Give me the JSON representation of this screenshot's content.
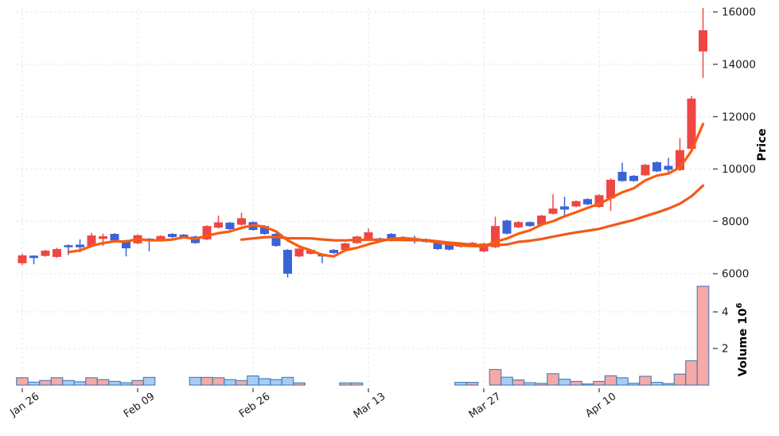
{
  "chart_data": {
    "type": "candlestick",
    "title": "",
    "panels": [
      "price",
      "volume"
    ],
    "ma_windows": [
      5,
      20
    ],
    "up_color_convention": "red = close above open, blue = close below open",
    "x_ticks": {
      "labels": [
        "Jan 26",
        "Feb 09",
        "Feb 26",
        "Mar 13",
        "Mar 27",
        "Apr 10"
      ],
      "indices": [
        0,
        10,
        20,
        30,
        40,
        50
      ]
    },
    "price_axis": {
      "label": "Price",
      "ticks": [
        6000,
        8000,
        10000,
        12000,
        14000,
        16000
      ],
      "range": [
        5700,
        16300
      ],
      "side": "right"
    },
    "volume_axis": {
      "label": "Volume",
      "unit_base": "10",
      "unit_exponent": "6",
      "ticks": [
        2,
        4
      ],
      "range": [
        0,
        5.7
      ],
      "side": "right"
    },
    "volume_scale": "10^6",
    "grid": {
      "on": true,
      "style": "dashed"
    },
    "colors": {
      "up_candle": "#ee4743",
      "down_candle": "#3b63d8",
      "ma5_line": "#fa5c10",
      "ma20_line": "#ef5a1c",
      "volume_up_fill": "#f8a8a5",
      "volume_down_fill": "#a9ccf3",
      "volume_edge": "#3d7dbd",
      "gridline": "#e4e7ec",
      "tick_text": "#1a1a1a"
    },
    "candles_format": [
      "open",
      "high",
      "low",
      "close",
      "volume_millions"
    ],
    "candles": [
      [
        6400,
        6760,
        6330,
        6700,
        0.4
      ],
      [
        6690,
        6700,
        6360,
        6600,
        0.16
      ],
      [
        6680,
        6910,
        6650,
        6880,
        0.25
      ],
      [
        6640,
        6990,
        6610,
        6940,
        0.4
      ],
      [
        7090,
        7120,
        6710,
        7010,
        0.25
      ],
      [
        7110,
        7310,
        6810,
        7010,
        0.18
      ],
      [
        7060,
        7560,
        7030,
        7460,
        0.4
      ],
      [
        7330,
        7530,
        7060,
        7430,
        0.3
      ],
      [
        7520,
        7550,
        7240,
        7270,
        0.2
      ],
      [
        7270,
        7300,
        6660,
        6970,
        0.13
      ],
      [
        7160,
        7500,
        7130,
        7470,
        0.25
      ],
      [
        7340,
        7370,
        6860,
        7240,
        0.42
      ],
      [
        7300,
        7470,
        7270,
        7440,
        0.02
      ],
      [
        7520,
        7550,
        7370,
        7400,
        0.02
      ],
      [
        7490,
        7520,
        7370,
        7400,
        0.02
      ],
      [
        7420,
        7450,
        7140,
        7170,
        0.42
      ],
      [
        7310,
        7850,
        7280,
        7820,
        0.42
      ],
      [
        7760,
        8220,
        7730,
        7960,
        0.4
      ],
      [
        7950,
        7980,
        7670,
        7700,
        0.3
      ],
      [
        7870,
        8330,
        7840,
        8120,
        0.25
      ],
      [
        7970,
        8000,
        7640,
        7670,
        0.5
      ],
      [
        7820,
        7850,
        7490,
        7520,
        0.35
      ],
      [
        7520,
        7550,
        7030,
        7060,
        0.3
      ],
      [
        6910,
        6940,
        5850,
        6000,
        0.42
      ],
      [
        6660,
        6990,
        6630,
        6960,
        0.12
      ],
      [
        6760,
        6940,
        6730,
        6910,
        0.02
      ],
      [
        6760,
        6790,
        6400,
        6660,
        0.02
      ],
      [
        6910,
        6940,
        6760,
        6790,
        0.02
      ],
      [
        6910,
        7190,
        6880,
        7160,
        0.12
      ],
      [
        7170,
        7450,
        7140,
        7420,
        0.12
      ],
      [
        7300,
        7730,
        7270,
        7580,
        0.02
      ],
      [
        7350,
        7380,
        7210,
        7240,
        0.02
      ],
      [
        7520,
        7550,
        7240,
        7270,
        0.02
      ],
      [
        7400,
        7430,
        7270,
        7300,
        0.02
      ],
      [
        7330,
        7450,
        7150,
        7270,
        0.02
      ],
      [
        7320,
        7350,
        7180,
        7210,
        0.02
      ],
      [
        7210,
        7240,
        6910,
        6940,
        0.02
      ],
      [
        7150,
        7180,
        6890,
        6920,
        0.02
      ],
      [
        7120,
        7150,
        7000,
        7030,
        0.15
      ],
      [
        7060,
        7210,
        7030,
        7180,
        0.15
      ],
      [
        6850,
        7180,
        6820,
        7150,
        0.02
      ],
      [
        7010,
        8180,
        6980,
        7820,
        0.85
      ],
      [
        8030,
        8060,
        7500,
        7530,
        0.43
      ],
      [
        7770,
        8000,
        7740,
        7970,
        0.28
      ],
      [
        7970,
        8000,
        7790,
        7820,
        0.13
      ],
      [
        7870,
        8250,
        7840,
        8220,
        0.09
      ],
      [
        8290,
        9030,
        8260,
        8490,
        0.62
      ],
      [
        8570,
        8940,
        8180,
        8450,
        0.32
      ],
      [
        8570,
        8800,
        8540,
        8770,
        0.2
      ],
      [
        8850,
        8880,
        8620,
        8650,
        0.06
      ],
      [
        8550,
        9030,
        8520,
        9000,
        0.2
      ],
      [
        8880,
        9640,
        8400,
        9590,
        0.51
      ],
      [
        9890,
        10240,
        9510,
        9540,
        0.4
      ],
      [
        9740,
        9770,
        9510,
        9540,
        0.1
      ],
      [
        9760,
        10190,
        9730,
        10160,
        0.48
      ],
      [
        10260,
        10290,
        9880,
        9910,
        0.15
      ],
      [
        10120,
        10420,
        9820,
        9970,
        0.08
      ],
      [
        9960,
        11180,
        9930,
        10720,
        0.6
      ],
      [
        10770,
        12790,
        10740,
        12690,
        1.33
      ],
      [
        14490,
        16150,
        13480,
        15300,
        5.4
      ]
    ]
  }
}
